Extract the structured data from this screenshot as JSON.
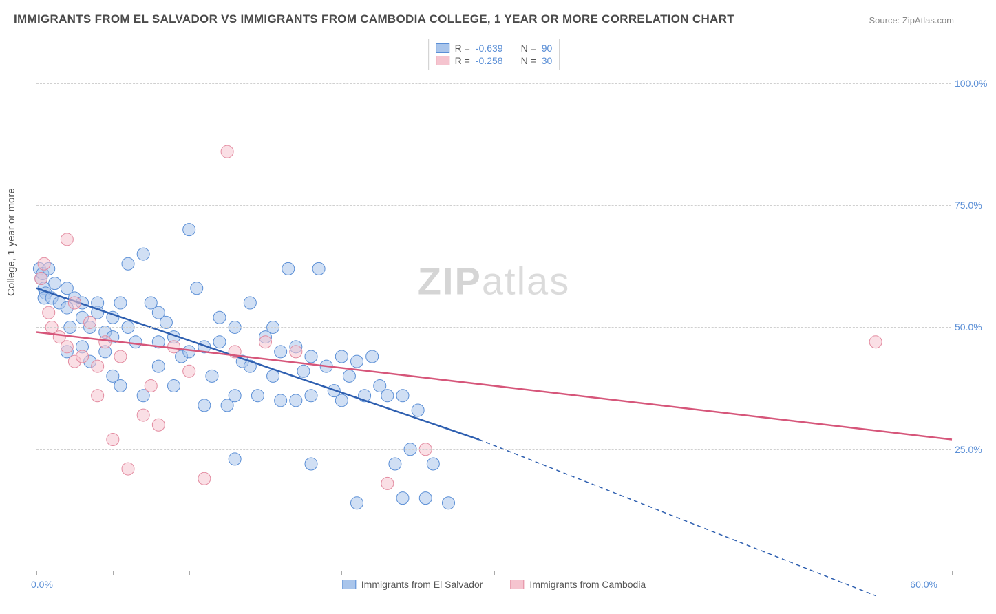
{
  "title": "IMMIGRANTS FROM EL SALVADOR VS IMMIGRANTS FROM CAMBODIA COLLEGE, 1 YEAR OR MORE CORRELATION CHART",
  "source": "Source: ZipAtlas.com",
  "ylabel": "College, 1 year or more",
  "watermark_bold": "ZIP",
  "watermark_light": "atlas",
  "chart": {
    "type": "scatter",
    "background_color": "#ffffff",
    "grid_color": "#d0d0d0",
    "axis_color": "#cccccc",
    "label_color": "#5b8fd6",
    "xlim": [
      0,
      60
    ],
    "ylim": [
      0,
      110
    ],
    "xtick_positions": [
      0,
      5,
      10,
      15,
      20,
      25,
      30,
      60
    ],
    "xaxis_label_min": "0.0%",
    "xaxis_label_max": "60.0%",
    "yticks": [
      {
        "v": 25,
        "label": "25.0%"
      },
      {
        "v": 50,
        "label": "50.0%"
      },
      {
        "v": 75,
        "label": "75.0%"
      },
      {
        "v": 100,
        "label": "100.0%"
      }
    ],
    "marker_radius": 9,
    "marker_opacity": 0.55,
    "series": [
      {
        "name": "Immigrants from El Salvador",
        "fill_color": "#a9c5eb",
        "stroke_color": "#5b8fd6",
        "line_color": "#2e5fb0",
        "line_width": 2.5,
        "R": "-0.639",
        "N": "90",
        "trend": {
          "x1": 0,
          "y1": 58,
          "x2": 29,
          "y2": 27,
          "x2_ext": 55,
          "y2_ext": -5
        },
        "points": [
          [
            0.2,
            62
          ],
          [
            0.3,
            60
          ],
          [
            0.5,
            58
          ],
          [
            0.4,
            61
          ],
          [
            0.6,
            57
          ],
          [
            0.5,
            56
          ],
          [
            0.8,
            62
          ],
          [
            1.2,
            59
          ],
          [
            1.0,
            56
          ],
          [
            1.5,
            55
          ],
          [
            2.0,
            54
          ],
          [
            2.0,
            58
          ],
          [
            2.5,
            56
          ],
          [
            3.0,
            55
          ],
          [
            2.2,
            50
          ],
          [
            3.0,
            52
          ],
          [
            3.5,
            50
          ],
          [
            4.0,
            53
          ],
          [
            3.0,
            46
          ],
          [
            4.5,
            49
          ],
          [
            5.0,
            52
          ],
          [
            5.0,
            48
          ],
          [
            4.0,
            55
          ],
          [
            4.5,
            45
          ],
          [
            5.5,
            38
          ],
          [
            6.0,
            50
          ],
          [
            5.0,
            40
          ],
          [
            6.5,
            47
          ],
          [
            7.0,
            65
          ],
          [
            7.5,
            55
          ],
          [
            8.0,
            53
          ],
          [
            7.0,
            36
          ],
          [
            8.0,
            42
          ],
          [
            8.5,
            51
          ],
          [
            9.0,
            48
          ],
          [
            9.0,
            38
          ],
          [
            9.5,
            44
          ],
          [
            10.0,
            70
          ],
          [
            10.5,
            58
          ],
          [
            10.0,
            45
          ],
          [
            11.0,
            46
          ],
          [
            11.0,
            34
          ],
          [
            11.5,
            40
          ],
          [
            12.0,
            52
          ],
          [
            12.0,
            47
          ],
          [
            12.5,
            34
          ],
          [
            13.0,
            50
          ],
          [
            13.5,
            43
          ],
          [
            13.0,
            36
          ],
          [
            14.0,
            55
          ],
          [
            14.0,
            42
          ],
          [
            14.5,
            36
          ],
          [
            15.0,
            48
          ],
          [
            15.5,
            50
          ],
          [
            15.5,
            40
          ],
          [
            16.0,
            45
          ],
          [
            16.0,
            35
          ],
          [
            16.5,
            62
          ],
          [
            17.0,
            46
          ],
          [
            17.5,
            41
          ],
          [
            17.0,
            35
          ],
          [
            18.0,
            44
          ],
          [
            18.0,
            36
          ],
          [
            18.5,
            62
          ],
          [
            19.0,
            42
          ],
          [
            19.5,
            37
          ],
          [
            20.0,
            44
          ],
          [
            20.5,
            40
          ],
          [
            20.0,
            35
          ],
          [
            21.0,
            43
          ],
          [
            21.5,
            36
          ],
          [
            22.0,
            44
          ],
          [
            22.5,
            38
          ],
          [
            18.0,
            22
          ],
          [
            23.0,
            36
          ],
          [
            23.5,
            22
          ],
          [
            24.0,
            36
          ],
          [
            25.0,
            33
          ],
          [
            13.0,
            23
          ],
          [
            26.0,
            22
          ],
          [
            25.5,
            15
          ],
          [
            27.0,
            14
          ],
          [
            21.0,
            14
          ],
          [
            24.0,
            15
          ],
          [
            24.5,
            25
          ],
          [
            6.0,
            63
          ],
          [
            2.0,
            45
          ],
          [
            3.5,
            43
          ],
          [
            5.5,
            55
          ],
          [
            8.0,
            47
          ]
        ]
      },
      {
        "name": "Immigrants from Cambodia",
        "fill_color": "#f5c4cf",
        "stroke_color": "#e38ba0",
        "line_color": "#d6567a",
        "line_width": 2.5,
        "R": "-0.258",
        "N": "30",
        "trend": {
          "x1": 0,
          "y1": 49,
          "x2": 60,
          "y2": 27
        },
        "points": [
          [
            0.3,
            60
          ],
          [
            0.5,
            63
          ],
          [
            0.8,
            53
          ],
          [
            1.0,
            50
          ],
          [
            1.5,
            48
          ],
          [
            2.0,
            68
          ],
          [
            2.0,
            46
          ],
          [
            2.5,
            43
          ],
          [
            3.0,
            44
          ],
          [
            3.5,
            51
          ],
          [
            4.0,
            42
          ],
          [
            4.5,
            47
          ],
          [
            5.0,
            27
          ],
          [
            5.5,
            44
          ],
          [
            6.0,
            21
          ],
          [
            7.0,
            32
          ],
          [
            7.5,
            38
          ],
          [
            8.0,
            30
          ],
          [
            9.0,
            46
          ],
          [
            10.0,
            41
          ],
          [
            11.0,
            19
          ],
          [
            12.5,
            86
          ],
          [
            13.0,
            45
          ],
          [
            15.0,
            47
          ],
          [
            17.0,
            45
          ],
          [
            23.0,
            18
          ],
          [
            25.5,
            25
          ],
          [
            55.0,
            47
          ],
          [
            4.0,
            36
          ],
          [
            2.5,
            55
          ]
        ]
      }
    ],
    "legend_stats_prefix_R": "R =",
    "legend_stats_prefix_N": "N ="
  }
}
